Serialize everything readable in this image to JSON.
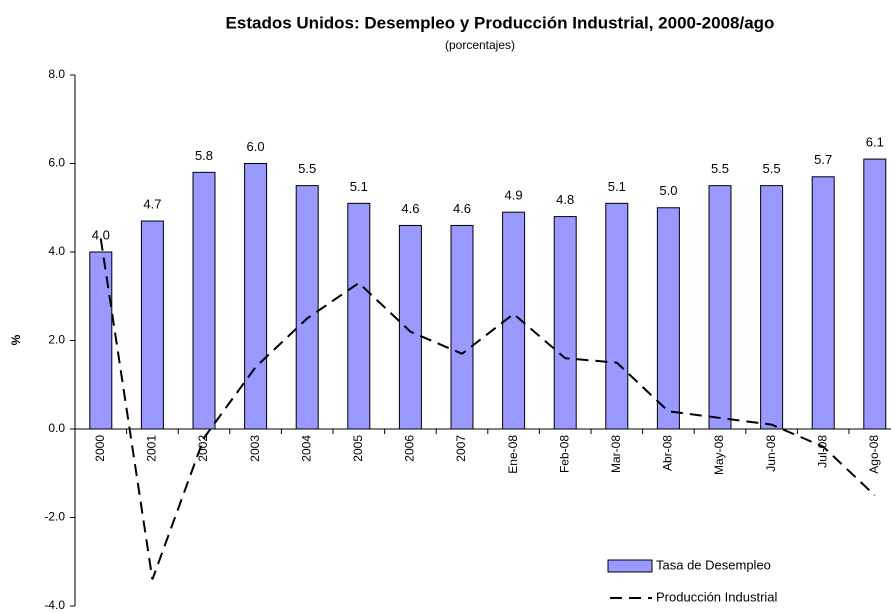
{
  "chart_data": {
    "type": "bar_line",
    "title": "Estados Unidos: Desempleo y Producción Industrial, 2000-2008/ago",
    "subtitle": "(porcentajes)",
    "y_label": "%",
    "categories": [
      "2000",
      "2001",
      "2002",
      "2003",
      "2004",
      "2005",
      "2006",
      "2007",
      "Ene-08",
      "Feb-08",
      "Mar-08",
      "Abr-08",
      "May-08",
      "Jun-08",
      "Jul-08",
      "Ago-08"
    ],
    "series": [
      {
        "name": "Tasa de Desempleo",
        "type": "bar",
        "color": "#9999ff",
        "values": [
          4.0,
          4.7,
          5.8,
          6.0,
          5.5,
          5.1,
          4.6,
          4.6,
          4.9,
          4.8,
          5.1,
          5.0,
          5.5,
          5.5,
          5.7,
          6.1
        ],
        "value_labels": [
          "4.0",
          "4.7",
          "5.8",
          "6.0",
          "5.5",
          "5.1",
          "4.6",
          "4.6",
          "4.9",
          "4.8",
          "5.1",
          "5.0",
          "5.5",
          "5.5",
          "5.7",
          "6.1"
        ]
      },
      {
        "name": "Producción Industrial",
        "type": "line",
        "color": "#000000",
        "dashed": true,
        "values": [
          4.3,
          -3.4,
          -0.2,
          1.4,
          2.5,
          3.3,
          2.2,
          1.7,
          2.6,
          1.6,
          1.5,
          0.4,
          0.25,
          0.1,
          -0.4,
          -1.5
        ]
      }
    ],
    "ylim": [
      -4,
      8
    ],
    "yticks": [
      {
        "value": -4,
        "label": "-4.0"
      },
      {
        "value": -2,
        "label": "-2.0"
      },
      {
        "value": 0,
        "label": "0.0"
      },
      {
        "value": 2,
        "label": "2.0"
      },
      {
        "value": 4,
        "label": "4.0"
      },
      {
        "value": 6,
        "label": "6.0"
      },
      {
        "value": 8,
        "label": "8.0"
      }
    ],
    "legend": "lower right"
  }
}
